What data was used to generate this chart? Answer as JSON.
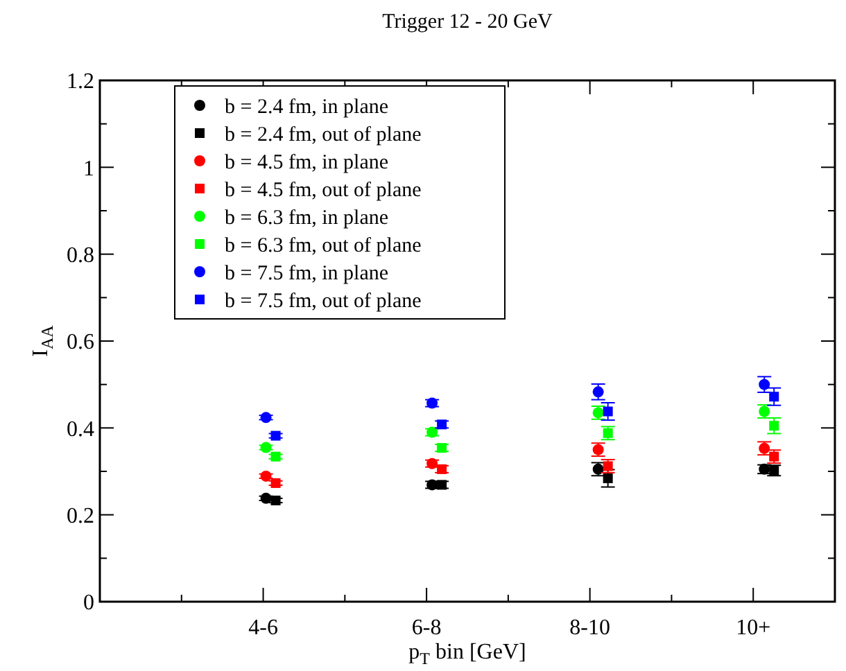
{
  "chart_data": {
    "type": "scatter",
    "title": "Trigger 12 - 20 GeV",
    "xlabel": "p$_{T}$ bin [GeV]",
    "ylabel": "I$_{AA}$",
    "categories": [
      "4-6",
      "6-8",
      "8-10",
      "10+"
    ],
    "ylim": [
      0,
      1.2
    ],
    "yticks": [
      0,
      {
        "value": 0.1,
        "label": null
      },
      0.2,
      {
        "value": 0.3,
        "label": null
      },
      0.4,
      {
        "value": 0.5,
        "label": null
      },
      0.6,
      {
        "value": 0.7,
        "label": null
      },
      0.8,
      {
        "value": 0.9,
        "label": null
      },
      1,
      {
        "value": 1.1,
        "label": null
      },
      1.2
    ],
    "grid": false,
    "legend": "top left",
    "series": [
      {
        "name": "b = 2.4 fm, in plane",
        "color": "#000000",
        "marker": "circle",
        "values": [
          0.238,
          0.269,
          0.305,
          0.305
        ],
        "errors": [
          0.005,
          0.008,
          0.015,
          0.01
        ]
      },
      {
        "name": "b = 2.4 fm, out of plane",
        "color": "#000000",
        "marker": "square",
        "values": [
          0.233,
          0.269,
          0.284,
          0.302
        ],
        "errors": [
          0.005,
          0.008,
          0.02,
          0.012
        ]
      },
      {
        "name": "b = 4.5 fm, in plane",
        "color": "#ff0000",
        "marker": "circle",
        "values": [
          0.289,
          0.318,
          0.35,
          0.353
        ],
        "errors": [
          0.005,
          0.008,
          0.015,
          0.015
        ]
      },
      {
        "name": "b = 4.5 fm, out of plane",
        "color": "#ff0000",
        "marker": "square",
        "values": [
          0.273,
          0.305,
          0.312,
          0.334
        ],
        "errors": [
          0.005,
          0.008,
          0.015,
          0.015
        ]
      },
      {
        "name": "b = 6.3 fm, in plane",
        "color": "#00ff00",
        "marker": "circle",
        "values": [
          0.355,
          0.39,
          0.435,
          0.438
        ],
        "errors": [
          0.005,
          0.008,
          0.015,
          0.015
        ]
      },
      {
        "name": "b = 6.3 fm, out of plane",
        "color": "#00ff00",
        "marker": "square",
        "values": [
          0.334,
          0.354,
          0.388,
          0.405
        ],
        "errors": [
          0.005,
          0.008,
          0.015,
          0.018
        ]
      },
      {
        "name": "b = 7.5 fm, in plane",
        "color": "#0000ff",
        "marker": "circle",
        "values": [
          0.424,
          0.457,
          0.483,
          0.5
        ],
        "errors": [
          0.005,
          0.008,
          0.018,
          0.018
        ]
      },
      {
        "name": "b = 7.5 fm, out of plane",
        "color": "#0000ff",
        "marker": "square",
        "values": [
          0.382,
          0.408,
          0.438,
          0.472
        ],
        "errors": [
          0.005,
          0.008,
          0.02,
          0.02
        ]
      }
    ]
  }
}
